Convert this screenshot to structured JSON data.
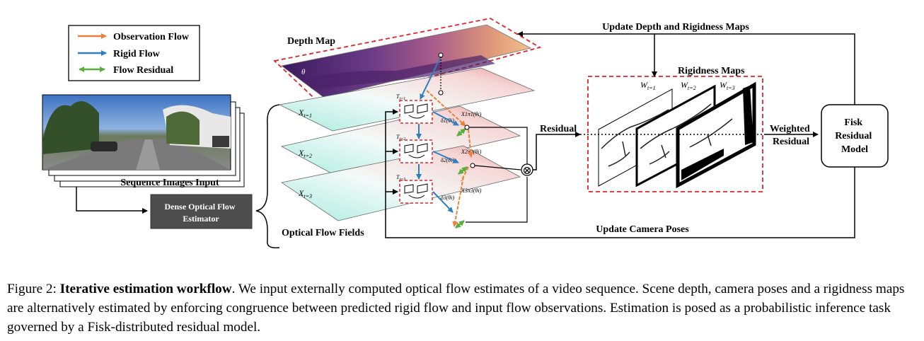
{
  "legend": {
    "observation_flow": "Observation Flow",
    "rigid_flow": "Rigid Flow",
    "flow_residual": "Flow Residual"
  },
  "colors": {
    "observation_flow": "#e8823a",
    "rigid_flow": "#2f7fc0",
    "flow_residual": "#5cae3c",
    "dashed_box": "#e2232a",
    "estimator_box": "#4d4d4d"
  },
  "labels": {
    "sequence_images": "Sequence Images Input",
    "estimator": "Dense Optical Flow\nEstimator",
    "depth_map": "Depth Map",
    "theta": "θ",
    "optical_flow_fields": "Optical Flow Fields",
    "update_depth": "Update Depth and Rigidness Maps",
    "rigidness_maps": "Rigidness Maps",
    "residual": "Residual",
    "weighted_residual": "Weighted\nResidual",
    "fisk_model": "Fisk\nResidual\nModel",
    "update_poses": "Update Camera Poses",
    "otimes": "⊗"
  },
  "math": {
    "x_labels": [
      {
        "base": "X",
        "sub": "t=1"
      },
      {
        "base": "X",
        "sub": "t=2"
      },
      {
        "base": "X",
        "sub": "t=3"
      }
    ],
    "t_labels": [
      {
        "base": "T",
        "sub": "t=1"
      },
      {
        "base": "T",
        "sub": "t=2"
      },
      {
        "base": "T",
        "sub": "t=3"
      }
    ],
    "delta_labels": [
      "δ1(θi)",
      "δ2(θi)",
      "δ3(θi)"
    ],
    "xhat_labels": [
      "X1π1(θi)",
      "X2π2(θi)",
      "X3π3(θi)"
    ],
    "w_labels": [
      {
        "base": "W",
        "sub": "t=1"
      },
      {
        "base": "W",
        "sub": "t=2"
      },
      {
        "base": "W",
        "sub": "t=3"
      }
    ]
  },
  "caption": {
    "prefix": "Figure 2: ",
    "title": "Iterative estimation workflow",
    "body": ". We input externally computed optical flow estimates of a video sequence. Scene depth, camera poses and a rigidness maps are alternatively estimated by enforcing congruence between predicted rigid flow and input flow observations. Estimation is posed as a probabilistic inference task governed by a Fisk-distributed residual model."
  }
}
